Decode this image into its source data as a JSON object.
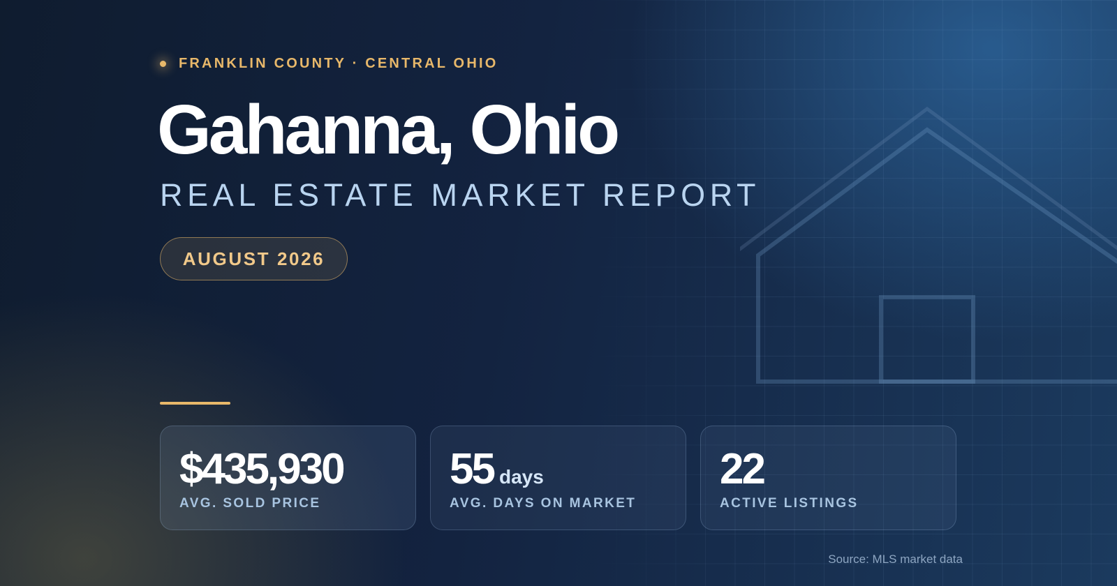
{
  "header": {
    "eyebrow": "FRANKLIN COUNTY · CENTRAL OHIO",
    "title": "Gahanna, Ohio",
    "subtitle": "REAL ESTATE MARKET REPORT",
    "date": "AUGUST 2026"
  },
  "stats": [
    {
      "value": "$435,930",
      "unit": "",
      "label": "AVG. SOLD PRICE"
    },
    {
      "value": "55",
      "unit": "days",
      "label": "AVG. DAYS ON MARKET"
    },
    {
      "value": "22",
      "unit": "",
      "label": "ACTIVE LISTINGS"
    }
  ],
  "footer": {
    "source": "Source: MLS market data"
  },
  "colors": {
    "accent_gold": "#e8b86a",
    "subtitle_blue": "#b9d4f0",
    "background_navy": "#132340"
  },
  "icons": {
    "decor": "house-outline-icon",
    "bullet": "dot-icon"
  }
}
